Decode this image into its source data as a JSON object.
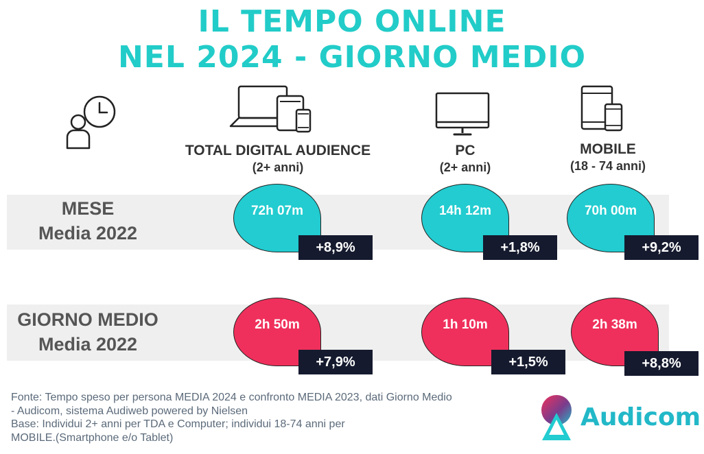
{
  "title": {
    "line1": "IL TEMPO ONLINE",
    "line2": "NEL 2024 - GIORNO MEDIO"
  },
  "columns": [
    {
      "name": "TOTAL DIGITAL AUDIENCE",
      "sub": "(2+ anni)",
      "icon": "devices-icon"
    },
    {
      "name": "PC",
      "sub": "(2+ anni)",
      "icon": "monitor-icon"
    },
    {
      "name": "MOBILE",
      "sub": "(18 - 74 anni)",
      "icon": "tablet-phone-icon"
    }
  ],
  "header_icon": "person-clock-icon",
  "rows": [
    {
      "label_line1": "MESE",
      "label_line2": "Media 2022",
      "color": "#22ccd0",
      "values": [
        "72h 07m",
        "14h 12m",
        "70h 00m"
      ],
      "changes": [
        "+8,9%",
        "+1,8%",
        "+9,2%"
      ]
    },
    {
      "label_line1": "GIORNO MEDIO",
      "label_line2": "Media 2022",
      "color": "#f0305c",
      "values": [
        "2h 50m",
        "1h 10m",
        "2h 38m"
      ],
      "changes": [
        "+7,9%",
        "+1,5%",
        "+8,8%"
      ]
    }
  ],
  "footer": {
    "line1": "Fonte: Tempo speso per persona MEDIA 2024 e confronto MEDIA 2023, dati Giorno Medio",
    "line2": "- Audicom, sistema Audiweb powered by Nielsen",
    "line3": "Base:  Individui 2+ anni per TDA e Computer; individui 18-74 anni per",
    "line4": "MOBILE.(Smartphone e/o Tablet)"
  },
  "logo": {
    "text": "Audicom",
    "color": "#22b8c8"
  }
}
